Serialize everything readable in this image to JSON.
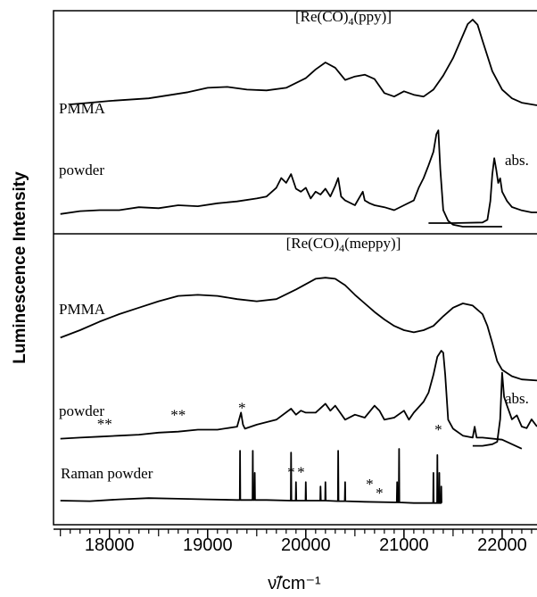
{
  "chart_data": [
    {
      "type": "line",
      "title": "[Re(CO)4(ppy)]",
      "ylabel": "Luminescence Intensity",
      "xlim": [
        17430,
        22355
      ],
      "series": [
        {
          "name": "PMMA",
          "color": "#000000",
          "x": [
            17600,
            17800,
            18000,
            18400,
            18800,
            19000,
            19200,
            19400,
            19600,
            19800,
            20000,
            20100,
            20200,
            20300,
            20400,
            20500,
            20600,
            20700,
            20800,
            20900,
            21000,
            21100,
            21200,
            21300,
            21400,
            21500,
            21600,
            21650,
            21700,
            21750,
            21800,
            21900,
            22000,
            22100,
            22200,
            22355
          ],
          "values": [
            0.01,
            0.03,
            0.05,
            0.08,
            0.15,
            0.2,
            0.21,
            0.18,
            0.17,
            0.2,
            0.31,
            0.41,
            0.49,
            0.43,
            0.29,
            0.33,
            0.35,
            0.3,
            0.14,
            0.1,
            0.16,
            0.12,
            0.1,
            0.18,
            0.34,
            0.54,
            0.8,
            0.93,
            0.98,
            0.92,
            0.74,
            0.39,
            0.18,
            0.08,
            0.03,
            0.0
          ]
        },
        {
          "name": "powder",
          "color": "#000000",
          "x": [
            17500,
            17700,
            17900,
            18100,
            18300,
            18500,
            18700,
            18900,
            19100,
            19300,
            19500,
            19600,
            19700,
            19750,
            19800,
            19850,
            19900,
            19950,
            20000,
            20050,
            20100,
            20150,
            20200,
            20250,
            20300,
            20330,
            20360,
            20400,
            20500,
            20580,
            20600,
            20650,
            20700,
            20800,
            20900,
            21000,
            21100,
            21150,
            21200,
            21250,
            21300,
            21330,
            21350,
            21370,
            21400,
            21450,
            21500,
            21600,
            21800,
            22000
          ],
          "values": [
            0.13,
            0.16,
            0.17,
            0.17,
            0.2,
            0.19,
            0.22,
            0.21,
            0.24,
            0.26,
            0.29,
            0.31,
            0.4,
            0.5,
            0.45,
            0.54,
            0.39,
            0.36,
            0.4,
            0.29,
            0.36,
            0.33,
            0.39,
            0.31,
            0.42,
            0.5,
            0.31,
            0.27,
            0.22,
            0.36,
            0.27,
            0.24,
            0.22,
            0.2,
            0.17,
            0.22,
            0.27,
            0.4,
            0.5,
            0.63,
            0.77,
            0.95,
            0.99,
            0.59,
            0.17,
            0.06,
            0.02,
            0,
            0,
            0
          ]
        },
        {
          "name": "abs.",
          "color": "#000000",
          "x": [
            21250,
            21500,
            21800,
            21850,
            21880,
            21900,
            21920,
            21940,
            21960,
            21980,
            22000,
            22050,
            22100,
            22200,
            22300,
            22355
          ],
          "values": [
            0,
            0,
            0.01,
            0.05,
            0.33,
            0.73,
            0.97,
            0.8,
            0.6,
            0.67,
            0.47,
            0.33,
            0.24,
            0.19,
            0.16,
            0.16
          ]
        }
      ]
    },
    {
      "type": "line",
      "title": "[Re(CO)4(meppy)]",
      "xlabel": "ν̃/cm⁻¹",
      "xlim": [
        17430,
        22355
      ],
      "xticks": [
        18000,
        19000,
        20000,
        21000,
        22000
      ],
      "xminorticks": [
        17500,
        17600,
        17700,
        17800,
        17900,
        18000,
        18100,
        18200,
        18300,
        18400,
        18500,
        18600,
        18700,
        18800,
        18900,
        19000,
        19100,
        19200,
        19300,
        19400,
        19500,
        19600,
        19700,
        19800,
        19900,
        20000,
        20100,
        20200,
        20300,
        20400,
        20500,
        20600,
        20700,
        20800,
        20900,
        21000,
        21100,
        21200,
        21300,
        21400,
        21500,
        21600,
        21700,
        21800,
        21900,
        22000,
        22100,
        22200,
        22300
      ],
      "series": [
        {
          "name": "PMMA",
          "color": "#000000",
          "x": [
            17500,
            17700,
            17900,
            18100,
            18300,
            18500,
            18700,
            18900,
            19100,
            19300,
            19500,
            19700,
            19900,
            20000,
            20100,
            20200,
            20300,
            20400,
            20500,
            20600,
            20700,
            20800,
            20900,
            21000,
            21100,
            21200,
            21300,
            21400,
            21500,
            21600,
            21700,
            21800,
            21850,
            21900,
            21950,
            22000,
            22100,
            22200,
            22355
          ],
          "values": [
            0.43,
            0.5,
            0.58,
            0.65,
            0.71,
            0.77,
            0.82,
            0.83,
            0.82,
            0.79,
            0.77,
            0.79,
            0.88,
            0.93,
            0.98,
            0.99,
            0.98,
            0.92,
            0.83,
            0.75,
            0.67,
            0.6,
            0.54,
            0.5,
            0.48,
            0.5,
            0.54,
            0.63,
            0.71,
            0.75,
            0.73,
            0.65,
            0.54,
            0.38,
            0.21,
            0.13,
            0.07,
            0.04,
            0.03
          ]
        },
        {
          "name": "powder",
          "color": "#000000",
          "x": [
            17500,
            17700,
            17900,
            18100,
            18300,
            18500,
            18700,
            18900,
            19100,
            19300,
            19340,
            19360,
            19380,
            19500,
            19700,
            19850,
            19900,
            19950,
            20000,
            20100,
            20200,
            20250,
            20300,
            20400,
            20500,
            20600,
            20700,
            20750,
            20800,
            20900,
            21000,
            21050,
            21100,
            21200,
            21250,
            21300,
            21340,
            21380,
            21400,
            21420,
            21450,
            21500,
            21600,
            21700,
            21720,
            21740,
            21800,
            22000,
            22200
          ],
          "values": [
            0.12,
            0.13,
            0.14,
            0.15,
            0.16,
            0.18,
            0.19,
            0.21,
            0.21,
            0.24,
            0.38,
            0.26,
            0.22,
            0.26,
            0.31,
            0.42,
            0.36,
            0.4,
            0.38,
            0.38,
            0.47,
            0.4,
            0.45,
            0.31,
            0.36,
            0.33,
            0.45,
            0.4,
            0.31,
            0.33,
            0.4,
            0.31,
            0.38,
            0.49,
            0.58,
            0.76,
            0.94,
            1.0,
            0.98,
            0.76,
            0.31,
            0.22,
            0.15,
            0.13,
            0.24,
            0.13,
            0.13,
            0.11,
            0.02
          ],
          "markers": [
            {
              "label": "**",
              "x": 17950,
              "y": 0.22
            },
            {
              "label": "**",
              "x": 18700,
              "y": 0.31
            },
            {
              "label": "*",
              "x": 19350,
              "y": 0.38
            },
            {
              "label": "*",
              "x": 21350,
              "y": 0.16
            }
          ]
        },
        {
          "name": "abs.",
          "color": "#000000",
          "x": [
            21700,
            21800,
            21900,
            21950,
            21980,
            22000,
            22020,
            22050,
            22100,
            22150,
            22200,
            22250,
            22300,
            22355
          ],
          "values": [
            0.06,
            0.06,
            0.08,
            0.11,
            0.39,
            0.97,
            0.67,
            0.56,
            0.39,
            0.44,
            0.3,
            0.28,
            0.39,
            0.3
          ]
        },
        {
          "name": "Raman powder",
          "color": "#000000",
          "x": [
            17500,
            17800,
            18100,
            18400,
            18700,
            19000,
            19300,
            19327,
            19330,
            19333,
            19457,
            19460,
            19463,
            19477,
            19480,
            19483,
            19600,
            19847,
            19850,
            19853,
            19897,
            19900,
            19903,
            19997,
            20000,
            20003,
            20147,
            20150,
            20153,
            20197,
            20200,
            20203,
            20327,
            20330,
            20333,
            20397,
            20400,
            20403,
            20600,
            20927,
            20930,
            20933,
            20947,
            20950,
            20953,
            21100,
            21297,
            21300,
            21303,
            21337,
            21340,
            21343,
            21357,
            21360,
            21363,
            21377,
            21380,
            21383
          ],
          "values": [
            0.16,
            0.15,
            0.18,
            0.2,
            0.19,
            0.18,
            0.17,
            0.17,
            0.97,
            0.17,
            0.17,
            0.97,
            0.17,
            0.17,
            0.61,
            0.17,
            0.17,
            0.16,
            0.94,
            0.16,
            0.16,
            0.46,
            0.16,
            0.16,
            0.46,
            0.16,
            0.16,
            0.39,
            0.16,
            0.16,
            0.46,
            0.16,
            0.15,
            0.97,
            0.15,
            0.15,
            0.46,
            0.15,
            0.14,
            0.13,
            0.46,
            0.13,
            0.13,
            1.0,
            0.13,
            0.12,
            0.12,
            0.61,
            0.12,
            0.12,
            0.9,
            0.12,
            0.12,
            0.61,
            0.12,
            0.12,
            0.39,
            0.12
          ],
          "markers": [
            {
              "label": "*",
              "x": 19850,
              "y": 0.54
            },
            {
              "label": "*",
              "x": 19950,
              "y": 0.54
            },
            {
              "label": "*",
              "x": 20650,
              "y": 0.35
            },
            {
              "label": "*",
              "x": 20750,
              "y": 0.2
            }
          ]
        }
      ]
    }
  ]
}
